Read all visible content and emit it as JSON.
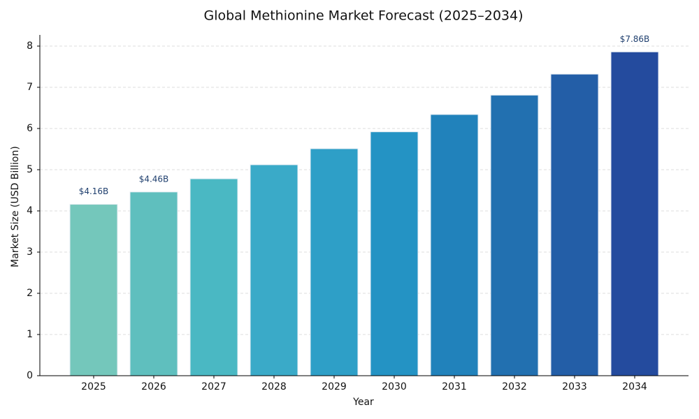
{
  "chart_data": {
    "type": "bar",
    "title": "Global Methionine Market Forecast (2025–2034)",
    "x_label": "Year",
    "y_label": "Market Size (USD Billion)",
    "categories": [
      "2025",
      "2026",
      "2027",
      "2028",
      "2029",
      "2030",
      "2031",
      "2032",
      "2033",
      "2034"
    ],
    "values": [
      4.16,
      4.46,
      4.78,
      5.12,
      5.51,
      5.92,
      6.34,
      6.81,
      7.32,
      7.86
    ],
    "value_labels": [
      "$4.16B",
      "$4.46B",
      null,
      null,
      null,
      null,
      null,
      null,
      null,
      "$7.86B"
    ],
    "colors": [
      "#74c7bb",
      "#5fbfbe",
      "#4ab8c3",
      "#3aaac8",
      "#2e9fc7",
      "#2493c4",
      "#2182bb",
      "#2270b0",
      "#235ea7",
      "#244b9e"
    ],
    "ylim": [
      0,
      8
    ],
    "yticks": [
      0,
      1,
      2,
      3,
      4,
      5,
      6,
      7,
      8
    ],
    "grid": true
  }
}
